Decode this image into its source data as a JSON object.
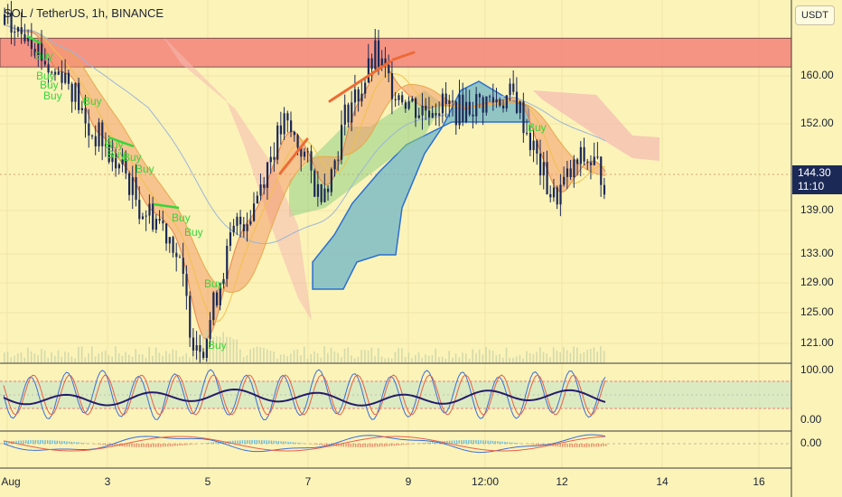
{
  "header": {
    "title": "SOL / TetherUS, 1h, BINANCE",
    "currency_button": "USDT"
  },
  "price_badge": {
    "price": "144.30",
    "countdown": "11:10"
  },
  "colors": {
    "background": "#fcf3b9",
    "candle": "#1b2957",
    "resistance_zone": "#f4827a",
    "cloud_green": "#8fcf83",
    "cloud_teal": "#6eb6c8",
    "cloud_pink": "#f4b8b0",
    "buy_label": "#37d63a",
    "trend_line": "#ee6a35"
  },
  "chart_data": {
    "type": "candlestick",
    "title": "SOL / TetherUS, 1h, BINANCE",
    "y_axis": {
      "ticks": [
        "160.00",
        "152.00",
        "144.30",
        "139.00",
        "133.00",
        "129.00",
        "125.00",
        "121.00"
      ],
      "range": [
        118.5,
        168
      ]
    },
    "x_axis": {
      "ticks": [
        "Aug",
        "3",
        "5",
        "7",
        "9",
        "12:00",
        "12",
        "14",
        "16"
      ]
    },
    "last_price": 144.3,
    "resistance_zone": [
      161.3,
      165.5
    ],
    "price_path": [
      [
        0,
        167.5
      ],
      [
        6,
        166
      ],
      [
        10,
        167
      ],
      [
        14,
        164
      ],
      [
        20,
        160
      ],
      [
        24,
        161
      ],
      [
        30,
        157
      ],
      [
        34,
        152
      ],
      [
        40,
        151
      ],
      [
        44,
        148
      ],
      [
        50,
        146
      ],
      [
        56,
        141
      ],
      [
        60,
        140
      ],
      [
        64,
        139
      ],
      [
        70,
        136
      ],
      [
        74,
        130
      ],
      [
        78,
        122
      ],
      [
        83,
        121
      ],
      [
        90,
        131
      ],
      [
        96,
        138
      ],
      [
        102,
        140
      ],
      [
        110,
        148
      ],
      [
        116,
        153
      ],
      [
        124,
        149
      ],
      [
        130,
        143
      ],
      [
        136,
        146
      ],
      [
        142,
        155
      ],
      [
        148,
        158
      ],
      [
        154,
        163
      ],
      [
        160,
        159
      ],
      [
        166,
        157
      ],
      [
        172,
        155
      ],
      [
        180,
        156
      ],
      [
        188,
        155
      ],
      [
        196,
        156
      ],
      [
        204,
        156.5
      ],
      [
        212,
        157
      ],
      [
        216,
        153
      ],
      [
        222,
        147
      ],
      [
        228,
        142
      ],
      [
        234,
        145
      ],
      [
        240,
        148
      ],
      [
        246,
        147
      ],
      [
        250,
        144.3
      ]
    ],
    "buy_labels": [
      "Buy",
      "Buy",
      "Buy",
      "Buy",
      "Buy",
      "Buy",
      "Buy",
      "Buy",
      "Buy",
      "Buy",
      "Buy",
      "Buy",
      "Buy",
      "Buy"
    ],
    "oscillator": {
      "ticks": [
        "100.00",
        "0.00"
      ],
      "range": [
        0,
        100
      ]
    },
    "macd": {
      "ticks": [
        "0.00"
      ]
    }
  }
}
